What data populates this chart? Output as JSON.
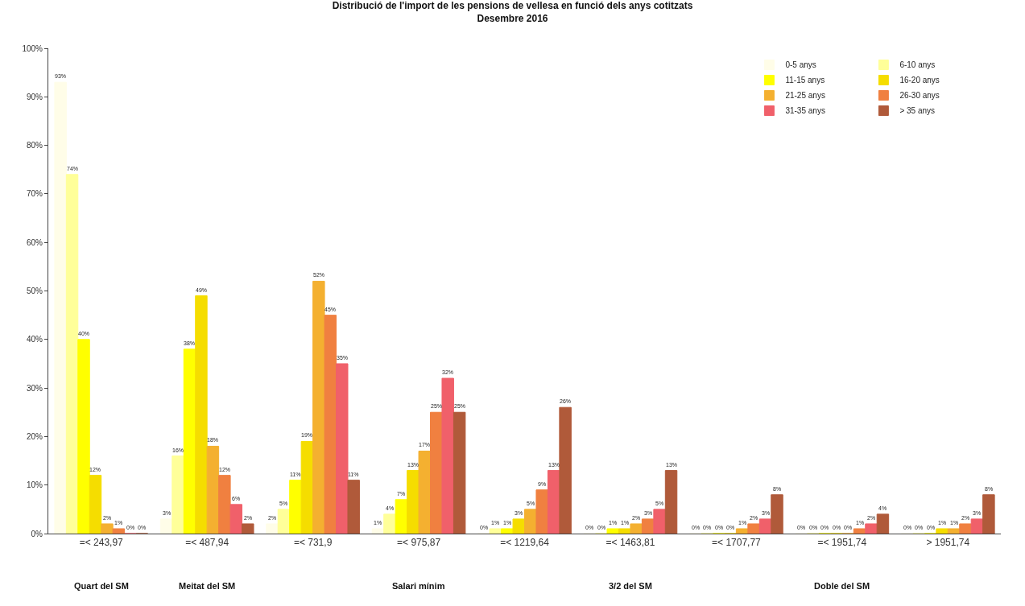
{
  "chart_data": {
    "type": "bar",
    "title": "Distribució de l'import de les pensions de vellesa en funció dels anys cotitzats",
    "subtitle": "Desembre 2016",
    "categories": [
      "=< 243,97",
      "=< 487,94",
      "=< 731,9",
      "=< 975,87",
      "=< 1219,64",
      "=< 1463,81",
      "=< 1707,77",
      "=< 1951,74",
      "> 1951,74"
    ],
    "series": [
      {
        "name": "0-5 anys",
        "color": "#fffde8",
        "values": [
          93,
          3,
          2,
          1,
          0,
          0,
          0,
          0,
          0
        ],
        "value_labels": [
          "93%",
          "3%",
          "2%",
          "1%",
          "0%",
          "0%",
          "0%",
          "0%",
          "0%"
        ]
      },
      {
        "name": "6-10 anys",
        "color": "#ffff99",
        "values": [
          74,
          16,
          5,
          4,
          1,
          0,
          0,
          0,
          0
        ],
        "value_labels": [
          "74%",
          "16%",
          "5%",
          "4%",
          "1%",
          "0%",
          "0%",
          "0%",
          "0%"
        ]
      },
      {
        "name": "11-15 anys",
        "color": "#ffff00",
        "values": [
          40,
          38,
          11,
          7,
          1,
          1,
          0,
          0,
          0
        ],
        "value_labels": [
          "40%",
          "38%",
          "11%",
          "7%",
          "1%",
          "1%",
          "0%",
          "0%",
          "0%"
        ]
      },
      {
        "name": "16-20 anys",
        "color": "#f5dd00",
        "values": [
          12,
          49,
          19,
          13,
          3,
          1,
          0,
          0,
          1
        ],
        "value_labels": [
          "12%",
          "49%",
          "19%",
          "13%",
          "3%",
          "1%",
          "0%",
          "0%",
          "1%"
        ]
      },
      {
        "name": "21-25 anys",
        "color": "#f4b030",
        "values": [
          2,
          18,
          52,
          17,
          5,
          2,
          1,
          0,
          1
        ],
        "value_labels": [
          "2%",
          "18%",
          "52%",
          "17%",
          "5%",
          "2%",
          "1%",
          "0%",
          "1%"
        ]
      },
      {
        "name": "26-30 anys",
        "color": "#f08040",
        "values": [
          1,
          12,
          45,
          25,
          9,
          3,
          2,
          1,
          2
        ],
        "value_labels": [
          "1%",
          "12%",
          "45%",
          "25%",
          "9%",
          "3%",
          "2%",
          "1%",
          "2%"
        ]
      },
      {
        "name": "31-35 anys",
        "color": "#f0606a",
        "values": [
          0,
          6,
          35,
          32,
          13,
          5,
          3,
          2,
          3
        ],
        "value_labels": [
          "0%",
          "6%",
          "35%",
          "32%",
          "13%",
          "5%",
          "3%",
          "2%",
          "3%"
        ]
      },
      {
        "name": "> 35 anys",
        "color": "#b05a3a",
        "values": [
          0,
          2,
          11,
          25,
          26,
          13,
          8,
          4,
          8
        ],
        "value_labels": [
          "0%",
          "2%",
          "11%",
          "25%",
          "26%",
          "13%",
          "8%",
          "4%",
          "8%"
        ]
      }
    ],
    "ylim": [
      0,
      100
    ],
    "yticks": [
      {
        "value": 0,
        "label": "0%"
      },
      {
        "value": 10,
        "label": "10%"
      },
      {
        "value": 20,
        "label": "20%"
      },
      {
        "value": 30,
        "label": "30%"
      },
      {
        "value": 40,
        "label": "40%"
      },
      {
        "value": 50,
        "label": "50%"
      },
      {
        "value": 60,
        "label": "60%"
      },
      {
        "value": 70,
        "label": "70%"
      },
      {
        "value": 80,
        "label": "80%"
      },
      {
        "value": 90,
        "label": "90%"
      },
      {
        "value": 100,
        "label": "100%"
      }
    ],
    "annotations": [
      "Quart del SM",
      "Meitat del SM",
      "Salari mínim",
      "3/2 del SM",
      "Doble del SM"
    ],
    "grid": false,
    "legend": "top right"
  }
}
